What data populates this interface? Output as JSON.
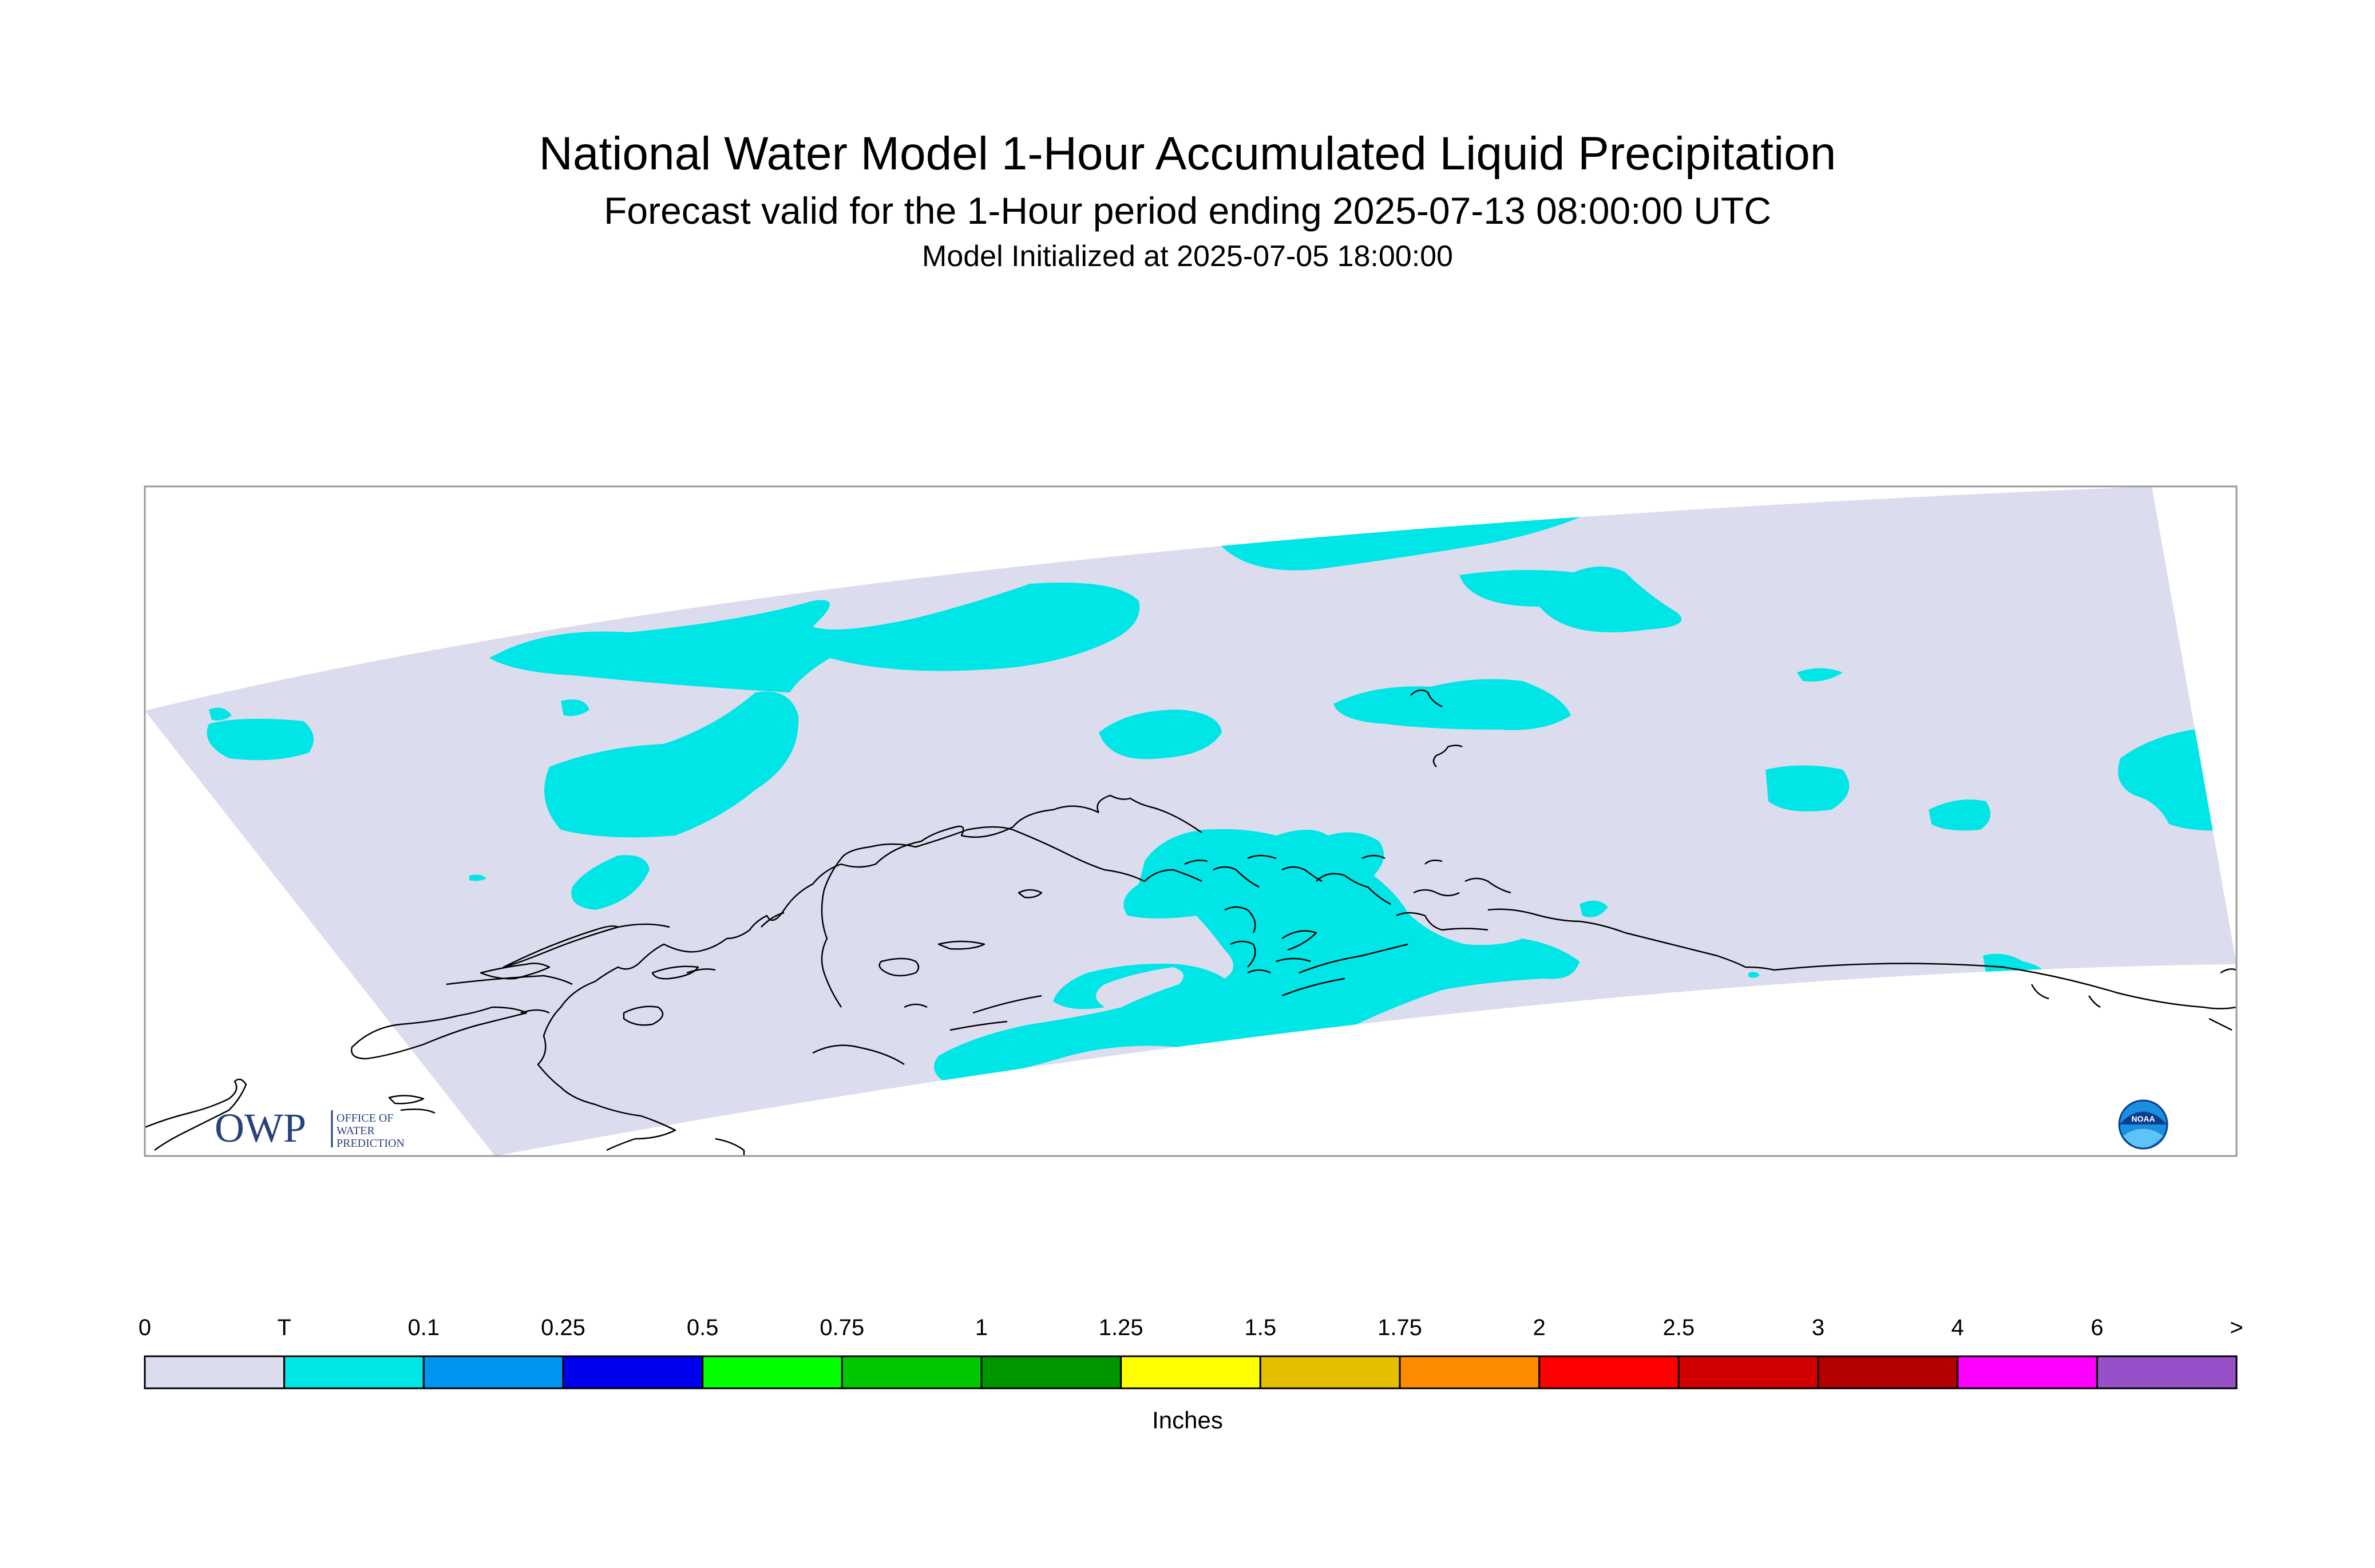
{
  "title": "National Water Model 1-Hour Accumulated Liquid Precipitation",
  "subtitle": "Forecast valid for the 1-Hour period ending 2025-07-13 08:00:00 UTC",
  "init_line": "Model Initialized at 2025-07-05 18:00:00",
  "logos": {
    "owp": {
      "main": "OWP",
      "line1": "OFFICE OF",
      "line2": "WATER",
      "line3": "PREDICTION"
    },
    "noaa": {
      "text": "NOAA"
    }
  },
  "colors": {
    "domain_background": "#dcdcef",
    "trace": "#00e6e6",
    "coastline": "#000000"
  },
  "legend": {
    "units": "Inches",
    "tick_labels": [
      "0",
      "T",
      "0.1",
      "0.25",
      "0.5",
      "0.75",
      "1",
      "1.25",
      "1.5",
      "1.75",
      "2",
      "2.5",
      "3",
      "4",
      "6",
      ">"
    ],
    "bins": [
      {
        "color": "#dcdcef"
      },
      {
        "color": "#00e6e6"
      },
      {
        "color": "#0096f0"
      },
      {
        "color": "#0000f0"
      },
      {
        "color": "#00ff00"
      },
      {
        "color": "#00c800"
      },
      {
        "color": "#009600"
      },
      {
        "color": "#ffff00"
      },
      {
        "color": "#e6be00"
      },
      {
        "color": "#ff8c00"
      },
      {
        "color": "#ff0000"
      },
      {
        "color": "#d20000"
      },
      {
        "color": "#b40000"
      },
      {
        "color": "#ff00ff"
      },
      {
        "color": "#9650c8"
      }
    ]
  }
}
